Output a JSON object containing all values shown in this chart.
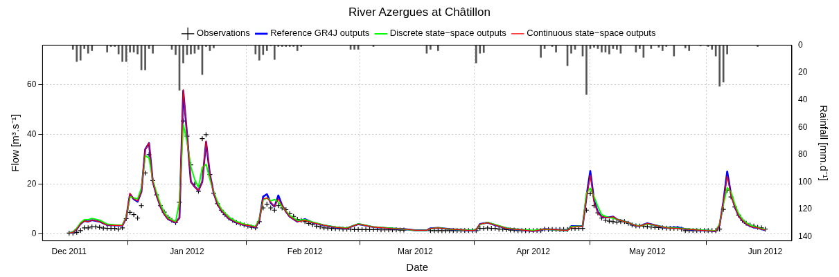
{
  "chart_data": {
    "type": "line",
    "title": "River Azergues at Châtillon",
    "xlabel": "Date",
    "ylabel": "Flow [m³.s⁻¹]",
    "y2label": "Rainfall [mm.d⁻¹]",
    "x": [
      "2011-12-01",
      "2011-12-02",
      "2011-12-03",
      "2011-12-04",
      "2011-12-05",
      "2011-12-06",
      "2011-12-07",
      "2011-12-09",
      "2011-12-11",
      "2011-12-13",
      "2011-12-15",
      "2011-12-16",
      "2011-12-17",
      "2011-12-18",
      "2011-12-19",
      "2011-12-20",
      "2011-12-21",
      "2011-12-22",
      "2011-12-23",
      "2011-12-24",
      "2011-12-25",
      "2011-12-26",
      "2011-12-27",
      "2011-12-29",
      "2011-12-30",
      "2011-12-31",
      "2012-01-01",
      "2012-01-02",
      "2012-01-03",
      "2012-01-04",
      "2012-01-05",
      "2012-01-06",
      "2012-01-07",
      "2012-01-08",
      "2012-01-09",
      "2012-01-10",
      "2012-01-12",
      "2012-01-14",
      "2012-01-16",
      "2012-01-18",
      "2012-01-19",
      "2012-01-20",
      "2012-01-21",
      "2012-01-22",
      "2012-01-23",
      "2012-01-24",
      "2012-01-25",
      "2012-01-26",
      "2012-01-27",
      "2012-01-28",
      "2012-01-30",
      "2012-02-01",
      "2012-02-03",
      "2012-02-06",
      "2012-02-09",
      "2012-02-12",
      "2012-02-15",
      "2012-02-19",
      "2012-02-24",
      "2012-02-27",
      "2012-03-01",
      "2012-03-04",
      "2012-03-05",
      "2012-03-07",
      "2012-03-10",
      "2012-03-16",
      "2012-03-17",
      "2012-03-18",
      "2012-03-20",
      "2012-03-22",
      "2012-03-25",
      "2012-03-28",
      "2012-04-01",
      "2012-04-04",
      "2012-04-09",
      "2012-04-10",
      "2012-04-11",
      "2012-04-14",
      "2012-04-15",
      "2012-04-16",
      "2012-04-17",
      "2012-04-18",
      "2012-04-19",
      "2012-04-20",
      "2012-04-21",
      "2012-04-22",
      "2012-04-23",
      "2012-04-24",
      "2012-04-26",
      "2012-04-28",
      "2012-04-29",
      "2012-05-01",
      "2012-05-04",
      "2012-05-06",
      "2012-05-09",
      "2012-05-11",
      "2012-05-15",
      "2012-05-19",
      "2012-05-20",
      "2012-05-21",
      "2012-05-22",
      "2012-05-23",
      "2012-05-24",
      "2012-05-25",
      "2012-05-26",
      "2012-05-27",
      "2012-05-28",
      "2012-05-29",
      "2012-05-30",
      "2012-05-31",
      "2012-06-01"
    ],
    "series": [
      {
        "name": "Observations",
        "type": "scatter",
        "marker": "cross",
        "color": "#000000",
        "x": [
          "2011-12-01",
          "2011-12-02",
          "2011-12-03",
          "2011-12-04",
          "2011-12-05",
          "2011-12-06",
          "2011-12-07",
          "2011-12-08",
          "2011-12-09",
          "2011-12-10",
          "2011-12-11",
          "2011-12-12",
          "2011-12-13",
          "2011-12-14",
          "2011-12-15",
          "2011-12-16",
          "2011-12-17",
          "2011-12-18",
          "2011-12-19",
          "2011-12-20",
          "2011-12-21",
          "2011-12-22",
          "2011-12-23",
          "2011-12-24",
          "2011-12-25",
          "2011-12-26",
          "2011-12-27",
          "2011-12-28",
          "2011-12-29",
          "2011-12-30",
          "2011-12-31",
          "2012-01-01",
          "2012-01-02",
          "2012-01-03",
          "2012-01-04",
          "2012-01-05",
          "2012-01-06",
          "2012-01-07",
          "2012-01-08",
          "2012-01-09",
          "2012-01-10",
          "2012-01-11",
          "2012-01-12",
          "2012-01-13",
          "2012-01-14",
          "2012-01-15",
          "2012-01-16",
          "2012-01-17",
          "2012-01-18",
          "2012-01-19",
          "2012-01-20",
          "2012-01-21",
          "2012-01-22",
          "2012-01-23",
          "2012-01-24",
          "2012-01-25",
          "2012-01-26",
          "2012-01-27",
          "2012-01-28",
          "2012-01-29",
          "2012-01-30",
          "2012-01-31",
          "2012-02-01",
          "2012-02-02",
          "2012-02-03",
          "2012-02-04",
          "2012-02-05",
          "2012-02-06",
          "2012-02-07",
          "2012-02-08",
          "2012-02-09",
          "2012-02-10",
          "2012-02-11",
          "2012-02-12",
          "2012-02-13",
          "2012-02-14",
          "2012-02-15",
          "2012-02-16",
          "2012-02-17",
          "2012-02-18",
          "2012-02-19",
          "2012-02-20",
          "2012-02-21",
          "2012-02-22",
          "2012-02-23",
          "2012-02-24",
          "2012-02-25",
          "2012-02-26",
          "2012-02-27",
          "2012-02-28",
          "2012-02-29",
          "2012-03-01",
          "2012-03-02",
          "2012-03-03",
          "2012-03-04",
          "2012-03-05",
          "2012-03-06",
          "2012-03-07",
          "2012-03-08",
          "2012-03-09",
          "2012-03-10",
          "2012-03-11",
          "2012-03-12",
          "2012-03-13",
          "2012-03-14",
          "2012-03-15",
          "2012-03-16",
          "2012-03-17",
          "2012-03-18",
          "2012-03-19",
          "2012-03-20",
          "2012-03-21",
          "2012-03-22",
          "2012-03-23",
          "2012-03-24",
          "2012-03-25",
          "2012-03-26",
          "2012-03-27",
          "2012-03-28",
          "2012-03-29",
          "2012-03-30",
          "2012-03-31",
          "2012-04-01",
          "2012-04-02",
          "2012-04-03",
          "2012-04-04",
          "2012-04-05",
          "2012-04-06",
          "2012-04-07",
          "2012-04-08",
          "2012-04-09",
          "2012-04-10",
          "2012-04-11",
          "2012-04-12",
          "2012-04-13",
          "2012-04-14",
          "2012-04-15",
          "2012-04-16",
          "2012-04-17",
          "2012-04-18",
          "2012-04-19",
          "2012-04-20",
          "2012-04-21",
          "2012-04-22",
          "2012-04-23",
          "2012-04-24",
          "2012-04-25",
          "2012-04-26",
          "2012-04-27",
          "2012-04-28",
          "2012-04-29",
          "2012-04-30",
          "2012-05-01",
          "2012-05-02",
          "2012-05-03",
          "2012-05-04",
          "2012-05-05",
          "2012-05-06",
          "2012-05-07",
          "2012-05-08",
          "2012-05-09",
          "2012-05-10",
          "2012-05-11",
          "2012-05-12",
          "2012-05-13",
          "2012-05-14",
          "2012-05-15",
          "2012-05-16",
          "2012-05-17",
          "2012-05-18",
          "2012-05-19",
          "2012-05-20",
          "2012-05-21",
          "2012-05-22",
          "2012-05-23",
          "2012-05-24",
          "2012-05-25",
          "2012-05-26",
          "2012-05-27",
          "2012-05-28",
          "2012-05-29",
          "2012-05-30",
          "2012-05-31",
          "2012-06-01"
        ],
        "values": [
          0.4,
          0.4,
          0.7,
          1.4,
          2.5,
          2.5,
          2.9,
          2.9,
          2.7,
          2.4,
          2.3,
          2.3,
          2.3,
          2.0,
          2.5,
          6.2,
          8.7,
          7.8,
          6.4,
          11.4,
          24.5,
          31.9,
          21.5,
          15.7,
          11.4,
          8.8,
          6.8,
          5.5,
          4.6,
          12.8,
          45.4,
          39.3,
          27.8,
          20.1,
          17.2,
          38.3,
          39.9,
          23.9,
          16.4,
          12.2,
          9.6,
          7.8,
          6.4,
          5.5,
          4.6,
          4.1,
          3.6,
          3.2,
          2.7,
          2.5,
          5.0,
          10.5,
          12.0,
          10.5,
          9.6,
          11.4,
          10.5,
          9.8,
          8.2,
          7.1,
          5.9,
          5.5,
          5.0,
          4.3,
          3.8,
          3.2,
          2.9,
          2.5,
          2.4,
          2.3,
          2.2,
          2.1,
          2.0,
          2.0,
          1.9,
          1.8,
          1.8,
          1.8,
          1.8,
          1.8,
          1.8,
          1.8,
          1.7,
          1.7,
          1.7,
          1.7,
          1.7,
          1.6,
          1.6,
          null,
          null,
          null,
          null,
          null,
          null,
          1.4,
          1.4,
          1.4,
          1.4,
          1.4,
          1.4,
          1.4,
          1.4,
          1.4,
          1.4,
          1.4,
          1.4,
          1.4,
          2.3,
          2.3,
          2.4,
          2.3,
          2.3,
          2.0,
          2.0,
          1.8,
          1.6,
          1.6,
          1.4,
          1.4,
          1.4,
          1.4,
          1.4,
          1.4,
          1.4,
          2.0,
          1.8,
          1.8,
          1.8,
          1.8,
          1.8,
          1.8,
          2.3,
          2.3,
          2.3,
          2.3,
          9.6,
          16.2,
          11.4,
          8.5,
          6.4,
          5.5,
          5.2,
          5.0,
          4.8,
          5.0,
          5.0,
          4.3,
          3.6,
          3.3,
          3.2,
          3.2,
          3.0,
          2.8,
          2.7,
          2.6,
          2.5,
          2.4,
          2.3,
          2.3,
          2.3,
          2.0,
          1.4,
          1.4,
          1.4,
          1.4,
          1.4,
          1.4,
          1.4,
          1.4,
          1.4,
          2.0,
          9.9,
          17.6,
          14.9,
          10.9,
          7.6,
          5.5,
          4.3,
          3.6,
          3.2,
          2.7,
          2.5,
          2.0
        ]
      },
      {
        "name": "Reference GR4J outputs",
        "color": "#0000ff",
        "values": [
          0.4,
          0.7,
          2.0,
          4.1,
          5.3,
          5.0,
          5.6,
          5.0,
          3.6,
          3.5,
          3.4,
          6.5,
          16.0,
          14.0,
          13.0,
          17.0,
          34.0,
          36.5,
          21.0,
          15.5,
          11.0,
          8.0,
          6.0,
          4.6,
          6.5,
          57.5,
          40.0,
          21.0,
          19.0,
          17.5,
          21.0,
          37.0,
          24.0,
          16.5,
          12.0,
          9.5,
          6.2,
          4.6,
          3.7,
          3.2,
          2.7,
          5.5,
          15.0,
          16.0,
          12.5,
          11.0,
          15.5,
          11.5,
          9.0,
          7.0,
          5.0,
          6.0,
          4.6,
          3.5,
          2.7,
          2.3,
          4.0,
          2.8,
          2.2,
          2.0,
          1.5,
          1.5,
          2.3,
          2.5,
          2.0,
          1.4,
          1.7,
          4.0,
          4.6,
          3.6,
          2.3,
          1.8,
          1.2,
          2.0,
          1.5,
          1.5,
          3.2,
          3.2,
          15.0,
          25.3,
          13.5,
          8.8,
          7.0,
          6.7,
          6.7,
          7.0,
          5.9,
          5.5,
          4.6,
          3.3,
          3.2,
          4.3,
          3.2,
          2.5,
          2.7,
          2.0,
          1.5,
          1.2,
          3.6,
          13.0,
          25.1,
          16.0,
          11.0,
          7.3,
          5.5,
          4.1,
          3.2,
          2.7,
          2.5,
          2.0,
          1.6
        ]
      },
      {
        "name": "Discrete state−space outputs",
        "color": "#00ff00",
        "values": [
          0.5,
          0.8,
          2.3,
          4.5,
          5.8,
          5.8,
          6.3,
          5.6,
          4.0,
          3.7,
          3.6,
          6.8,
          15.0,
          14.5,
          14.1,
          18.5,
          31.5,
          30.5,
          21.5,
          16.5,
          12.0,
          8.8,
          6.6,
          5.0,
          13.0,
          44.0,
          37.0,
          27.0,
          22.0,
          18.7,
          26.8,
          28.0,
          22.0,
          17.0,
          13.0,
          10.0,
          6.8,
          5.0,
          4.0,
          3.4,
          3.0,
          6.0,
          13.7,
          14.5,
          13.3,
          13.9,
          12.8,
          11.0,
          9.2,
          7.5,
          5.5,
          5.8,
          4.8,
          3.6,
          2.8,
          2.4,
          4.1,
          2.9,
          2.3,
          2.0,
          1.5,
          1.5,
          2.2,
          2.5,
          2.0,
          1.5,
          1.8,
          3.8,
          4.7,
          3.8,
          2.4,
          1.8,
          1.5,
          2.0,
          1.5,
          1.5,
          3.0,
          3.2,
          16.4,
          18.4,
          15.0,
          11.0,
          7.8,
          7.1,
          6.6,
          6.4,
          5.9,
          5.5,
          4.6,
          3.4,
          3.2,
          4.1,
          3.2,
          2.6,
          2.4,
          2.1,
          1.6,
          1.3,
          4.0,
          12.0,
          18.6,
          16.9,
          12.0,
          8.2,
          6.0,
          4.5,
          3.6,
          3.0,
          2.6,
          2.2,
          1.8
        ]
      },
      {
        "name": "Continuous state−space outputs",
        "color": "#ff0000",
        "values": [
          0.4,
          0.7,
          2.0,
          4.1,
          5.3,
          5.0,
          5.6,
          5.0,
          3.6,
          3.5,
          3.4,
          6.5,
          16.4,
          14.1,
          13.3,
          16.9,
          33.8,
          36.5,
          21.0,
          15.5,
          11.0,
          8.0,
          6.0,
          4.6,
          6.5,
          58.0,
          40.0,
          21.0,
          19.0,
          17.5,
          21.0,
          37.4,
          24.0,
          16.5,
          12.0,
          9.5,
          6.2,
          4.6,
          3.7,
          3.2,
          2.7,
          5.5,
          14.1,
          14.5,
          12.8,
          11.0,
          14.1,
          11.5,
          9.0,
          7.0,
          5.0,
          5.5,
          4.6,
          3.5,
          2.7,
          2.3,
          4.0,
          2.8,
          2.2,
          2.0,
          1.5,
          1.5,
          2.3,
          2.5,
          2.0,
          1.4,
          1.7,
          4.0,
          4.6,
          3.6,
          2.3,
          1.8,
          1.2,
          2.0,
          1.5,
          1.5,
          2.7,
          3.2,
          14.5,
          23.7,
          12.8,
          8.5,
          7.0,
          6.7,
          6.7,
          7.0,
          5.9,
          5.5,
          4.6,
          3.3,
          3.2,
          4.3,
          3.2,
          2.5,
          2.3,
          2.0,
          1.5,
          1.2,
          3.6,
          12.8,
          23.3,
          15.5,
          11.0,
          7.3,
          5.5,
          4.1,
          3.2,
          2.7,
          2.5,
          2.0,
          1.6
        ]
      },
      {
        "type": "bar",
        "axis": "y2",
        "color": "#555555",
        "x": [
          "2011-12-02",
          "2011-12-03",
          "2011-12-04",
          "2011-12-05",
          "2011-12-06",
          "2011-12-07",
          "2011-12-11",
          "2011-12-12",
          "2011-12-13",
          "2011-12-14",
          "2011-12-15",
          "2011-12-16",
          "2011-12-17",
          "2011-12-18",
          "2011-12-19",
          "2011-12-20",
          "2011-12-21",
          "2011-12-22",
          "2011-12-23",
          "2011-12-28",
          "2011-12-29",
          "2011-12-30",
          "2011-12-31",
          "2012-01-01",
          "2012-01-02",
          "2012-01-03",
          "2012-01-04",
          "2012-01-05",
          "2012-01-06",
          "2012-01-07",
          "2012-01-08",
          "2012-01-19",
          "2012-01-20",
          "2012-01-21",
          "2012-01-22",
          "2012-01-23",
          "2012-01-24",
          "2012-01-25",
          "2012-01-26",
          "2012-01-27",
          "2012-01-28",
          "2012-01-29",
          "2012-01-30",
          "2012-01-31",
          "2012-02-13",
          "2012-02-14",
          "2012-02-15",
          "2012-02-19",
          "2012-03-04",
          "2012-03-05",
          "2012-03-07",
          "2012-03-17",
          "2012-03-18",
          "2012-03-19",
          "2012-04-03",
          "2012-04-04",
          "2012-04-06",
          "2012-04-07",
          "2012-04-10",
          "2012-04-11",
          "2012-04-12",
          "2012-04-14",
          "2012-04-15",
          "2012-04-16",
          "2012-04-17",
          "2012-04-18",
          "2012-04-19",
          "2012-04-20",
          "2012-04-21",
          "2012-04-22",
          "2012-04-23",
          "2012-04-24",
          "2012-04-28",
          "2012-04-29",
          "2012-04-30",
          "2012-05-02",
          "2012-05-04",
          "2012-05-05",
          "2012-05-06",
          "2012-05-08",
          "2012-05-11",
          "2012-05-12",
          "2012-05-15",
          "2012-05-17",
          "2012-05-18",
          "2012-05-19",
          "2012-05-20",
          "2012-05-21",
          "2012-05-22",
          "2012-05-30"
        ],
        "values": [
          3,
          12,
          11,
          2.5,
          6,
          4,
          5,
          1,
          1,
          6.5,
          12,
          12,
          5,
          5,
          6.5,
          18,
          18,
          2.5,
          6,
          3,
          7,
          33,
          13,
          7,
          6.5,
          6,
          3,
          21.5,
          1,
          4,
          2,
          6.5,
          11,
          7,
          4,
          0.5,
          10.5,
          1,
          1,
          1,
          1,
          1,
          4,
          1,
          3,
          3,
          3,
          1,
          6,
          3,
          4,
          13,
          6,
          5.5,
          9,
          2.5,
          1,
          5,
          15,
          6,
          3,
          8,
          36,
          2.5,
          1.5,
          2.5,
          5,
          5,
          6.5,
          2.5,
          3,
          6,
          5,
          2.5,
          9,
          2.5,
          1.5,
          4,
          1,
          8,
          2,
          4,
          0.5,
          1,
          3,
          8,
          30,
          27,
          6.5,
          1
        ]
      }
    ],
    "xlim": [
      "2011-11-24",
      "2012-06-08"
    ],
    "xticks": [
      {
        "value": "2011-12-01",
        "label": "Dec 2011"
      },
      {
        "value": "2012-01-01",
        "label": "Jan 2012"
      },
      {
        "value": "2012-02-01",
        "label": "Feb 2012"
      },
      {
        "value": "2012-03-01",
        "label": "Mar 2012"
      },
      {
        "value": "2012-04-01",
        "label": "Apr 2012"
      },
      {
        "value": "2012-05-01",
        "label": "May 2012"
      },
      {
        "value": "2012-06-01",
        "label": "Jun 2012"
      }
    ],
    "ylim": [
      -2.7,
      75.8
    ],
    "yticks": [
      0,
      20,
      40,
      60
    ],
    "y2lim": [
      143,
      0
    ],
    "y2ticks": [
      0,
      20,
      40,
      60,
      80,
      100,
      120,
      140
    ],
    "grid": true,
    "legend": "top"
  }
}
